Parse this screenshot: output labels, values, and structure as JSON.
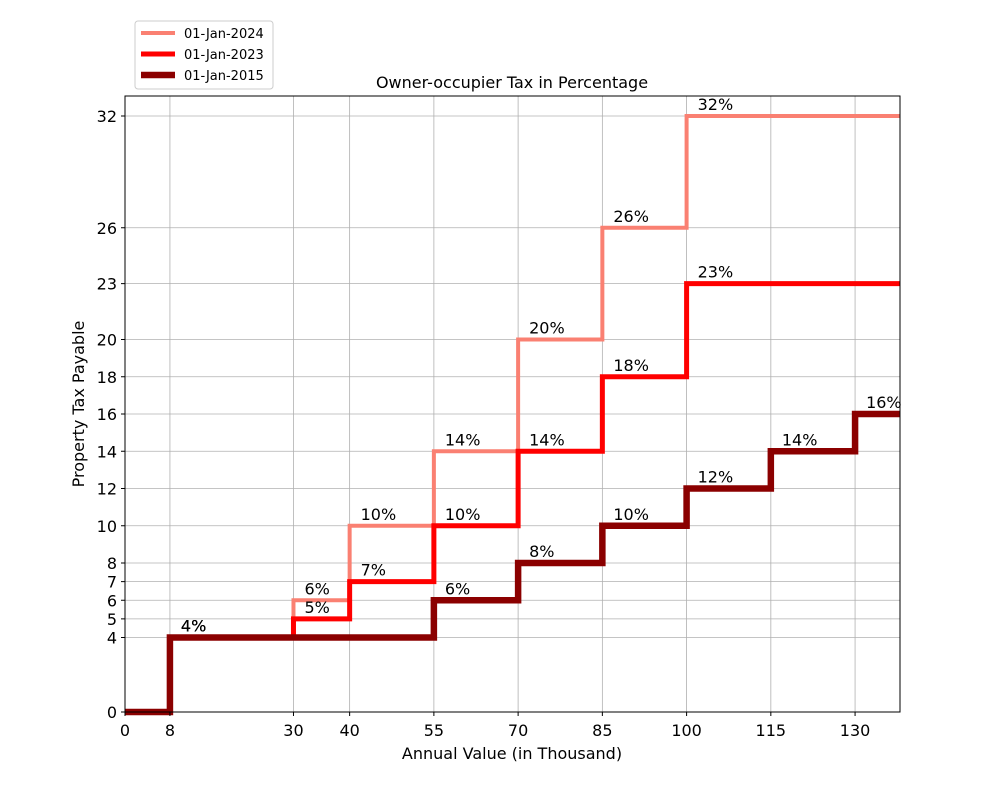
{
  "chart_data": {
    "type": "line",
    "step": "post",
    "title": "Owner-occupier Tax in Percentage",
    "xlabel": "Annual Value (in Thousand)",
    "ylabel": "Property Tax Payable",
    "xlim": [
      0,
      138
    ],
    "ylim": [
      0,
      32
    ],
    "xticks": [
      0,
      8,
      30,
      40,
      55,
      70,
      85,
      100,
      115,
      130
    ],
    "yticks": [
      0,
      4,
      5,
      6,
      7,
      8,
      10,
      12,
      14,
      16,
      18,
      20,
      23,
      26,
      32
    ],
    "grid": true,
    "legend_position": "top-left, above plot",
    "series": [
      {
        "name": "01-Jan-2024",
        "color": "#fa8072",
        "x": [
          0,
          8,
          30,
          40,
          55,
          70,
          85,
          100,
          138
        ],
        "y": [
          0,
          4,
          6,
          10,
          14,
          20,
          26,
          32,
          32
        ],
        "labels": [
          {
            "x": 8,
            "y": 4,
            "text": "4%"
          },
          {
            "x": 30,
            "y": 6,
            "text": "6%"
          },
          {
            "x": 40,
            "y": 10,
            "text": "10%"
          },
          {
            "x": 55,
            "y": 14,
            "text": "14%"
          },
          {
            "x": 70,
            "y": 20,
            "text": "20%"
          },
          {
            "x": 85,
            "y": 26,
            "text": "26%"
          },
          {
            "x": 100,
            "y": 32,
            "text": "32%"
          }
        ]
      },
      {
        "name": "01-Jan-2023",
        "color": "#ff0000",
        "x": [
          0,
          8,
          30,
          40,
          55,
          70,
          85,
          100,
          138
        ],
        "y": [
          0,
          4,
          5,
          7,
          10,
          14,
          18,
          23,
          23
        ],
        "labels": [
          {
            "x": 8,
            "y": 4,
            "text": "4%"
          },
          {
            "x": 30,
            "y": 5,
            "text": "5%"
          },
          {
            "x": 40,
            "y": 7,
            "text": "7%"
          },
          {
            "x": 55,
            "y": 10,
            "text": "10%"
          },
          {
            "x": 70,
            "y": 14,
            "text": "14%"
          },
          {
            "x": 85,
            "y": 18,
            "text": "18%"
          },
          {
            "x": 100,
            "y": 23,
            "text": "23%"
          }
        ]
      },
      {
        "name": "01-Jan-2015",
        "color": "#8b0000",
        "x": [
          0,
          8,
          55,
          70,
          85,
          100,
          115,
          130,
          138
        ],
        "y": [
          0,
          4,
          6,
          8,
          10,
          12,
          14,
          16,
          16
        ],
        "labels": [
          {
            "x": 8,
            "y": 4,
            "text": "4%"
          },
          {
            "x": 55,
            "y": 6,
            "text": "6%"
          },
          {
            "x": 70,
            "y": 8,
            "text": "8%"
          },
          {
            "x": 85,
            "y": 10,
            "text": "10%"
          },
          {
            "x": 100,
            "y": 12,
            "text": "12%"
          },
          {
            "x": 115,
            "y": 14,
            "text": "14%"
          },
          {
            "x": 130,
            "y": 16,
            "text": "16%"
          }
        ]
      }
    ]
  }
}
